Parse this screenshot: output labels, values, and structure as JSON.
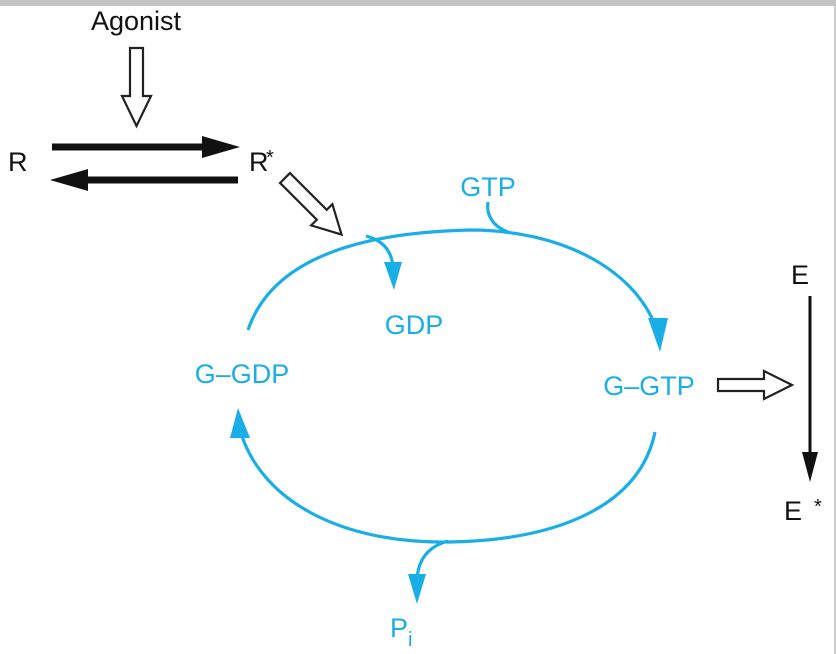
{
  "labels": {
    "agonist": "Agonist",
    "r": "R",
    "r_star": "R",
    "star": "*",
    "gtp": "GTP",
    "gdp": "GDP",
    "g_gdp": "G–GDP",
    "g_gtp": "G–GTP",
    "e": "E",
    "e_star": "E",
    "pi_base": "P",
    "pi_sub": "i"
  },
  "colors": {
    "cycle": "#1aaee6",
    "black": "#111111",
    "frame": "#bdbdbd"
  }
}
